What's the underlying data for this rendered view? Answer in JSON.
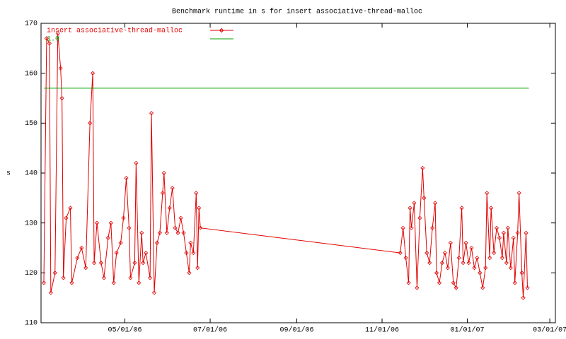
{
  "chart_data": {
    "type": "line",
    "title": "Benchmark runtime in s for insert associative-thread-malloc",
    "y_label": "s",
    "xlim": [
      "2006-03-02",
      "2007-03-05"
    ],
    "xticks": [
      {
        "value": "2006-05-01",
        "label": "05/01/06"
      },
      {
        "value": "2006-07-01",
        "label": "07/01/06"
      },
      {
        "value": "2006-09-01",
        "label": "09/01/06"
      },
      {
        "value": "2006-11-01",
        "label": "11/01/06"
      },
      {
        "value": "2007-01-01",
        "label": "01/01/07"
      },
      {
        "value": "2007-03-01",
        "label": "03/01/07"
      }
    ],
    "ylim": [
      110,
      170
    ],
    "yticks": [
      110,
      120,
      130,
      140,
      150,
      160,
      170
    ],
    "legend": "top-left",
    "series": [
      {
        "name": "insert associative-thread-malloc",
        "color": "#e00000",
        "markers": true,
        "x": [
          "2006-03-04",
          "2006-03-06",
          "2006-03-08",
          "2006-03-09",
          "2006-03-12",
          "2006-03-14",
          "2006-03-16",
          "2006-03-17",
          "2006-03-18",
          "2006-03-20",
          "2006-03-23",
          "2006-03-24",
          "2006-03-28",
          "2006-03-31",
          "2006-04-03",
          "2006-04-06",
          "2006-04-08",
          "2006-04-09",
          "2006-04-11",
          "2006-04-14",
          "2006-04-16",
          "2006-04-19",
          "2006-04-21",
          "2006-04-23",
          "2006-04-25",
          "2006-04-28",
          "2006-04-30",
          "2006-05-02",
          "2006-05-04",
          "2006-05-05",
          "2006-05-08",
          "2006-05-09",
          "2006-05-11",
          "2006-05-13",
          "2006-05-14",
          "2006-05-16",
          "2006-05-19",
          "2006-05-20",
          "2006-05-22",
          "2006-05-24",
          "2006-05-26",
          "2006-05-28",
          "2006-05-29",
          "2006-05-31",
          "2006-06-02",
          "2006-06-04",
          "2006-06-06",
          "2006-06-08",
          "2006-06-10",
          "2006-06-12",
          "2006-06-14",
          "2006-06-16",
          "2006-06-17",
          "2006-06-19",
          "2006-06-21",
          "2006-06-22",
          "2006-06-23",
          "2006-06-24",
          "2006-11-14",
          "2006-11-16",
          "2006-11-18",
          "2006-11-20",
          "2006-11-21",
          "2006-11-22",
          "2006-11-24",
          "2006-11-26",
          "2006-11-28",
          "2006-11-30",
          "2006-12-01",
          "2006-12-03",
          "2006-12-05",
          "2006-12-07",
          "2006-12-09",
          "2006-12-10",
          "2006-12-12",
          "2006-12-14",
          "2006-12-16",
          "2006-12-18",
          "2006-12-20",
          "2006-12-22",
          "2006-12-24",
          "2006-12-26",
          "2006-12-28",
          "2006-12-29",
          "2006-12-31",
          "2007-01-02",
          "2007-01-04",
          "2007-01-06",
          "2007-01-08",
          "2007-01-10",
          "2007-01-12",
          "2007-01-14",
          "2007-01-15",
          "2007-01-17",
          "2007-01-18",
          "2007-01-20",
          "2007-01-22",
          "2007-01-24",
          "2007-01-26",
          "2007-01-27",
          "2007-01-29",
          "2007-01-30",
          "2007-02-01",
          "2007-02-03",
          "2007-02-04",
          "2007-02-06",
          "2007-02-07",
          "2007-02-09",
          "2007-02-10",
          "2007-02-12",
          "2007-02-13"
        ],
        "values": [
          118,
          167,
          166,
          116,
          120,
          168,
          161,
          155,
          119,
          131,
          133,
          118,
          123,
          125,
          121,
          150,
          160,
          122,
          130,
          122,
          119,
          127,
          130,
          118,
          124,
          126,
          131,
          139,
          129,
          119,
          122,
          142,
          118,
          128,
          122,
          124,
          119,
          152,
          116,
          126,
          128,
          136,
          140,
          128,
          133,
          137,
          129,
          128,
          131,
          128,
          124,
          120,
          126,
          124,
          136,
          121,
          133,
          129,
          124,
          129,
          123,
          118,
          133,
          129,
          134,
          117,
          131,
          141,
          135,
          124,
          122,
          129,
          134,
          120,
          118,
          122,
          124,
          121,
          126,
          118,
          117,
          123,
          133,
          122,
          126,
          122,
          125,
          121,
          123,
          120,
          117,
          121,
          136,
          123,
          133,
          124,
          129,
          127,
          123,
          128,
          122,
          129,
          121,
          127,
          118,
          128,
          136,
          120,
          115,
          128,
          117
        ]
      },
      {
        "name": "1.0",
        "color": "#00a000",
        "markers": false,
        "x": [
          "2006-03-04",
          "2007-02-14"
        ],
        "values": [
          157,
          157
        ]
      }
    ]
  }
}
